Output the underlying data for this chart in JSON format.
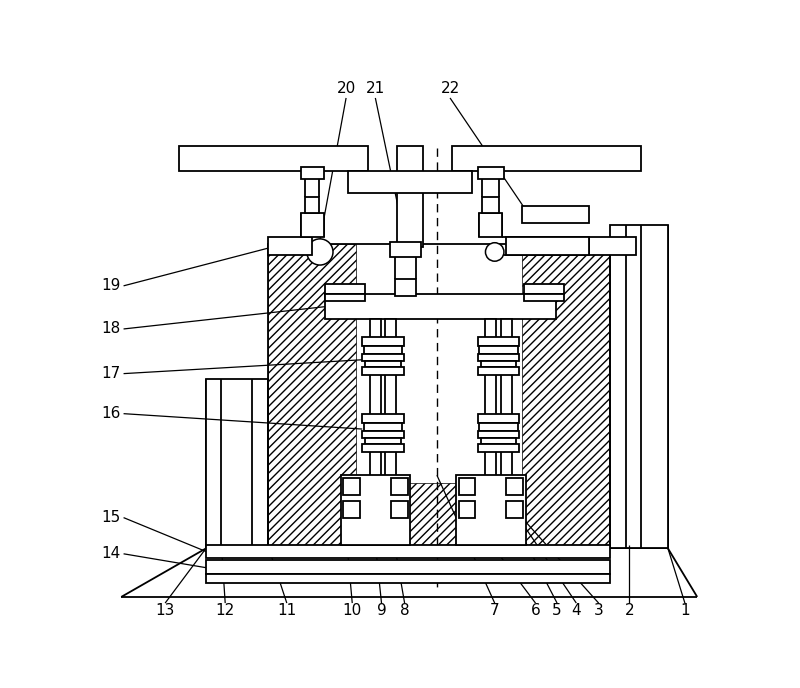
{
  "bg_color": "#ffffff",
  "line_color": "#000000",
  "fig_width": 8.0,
  "fig_height": 6.88,
  "dpi": 100
}
